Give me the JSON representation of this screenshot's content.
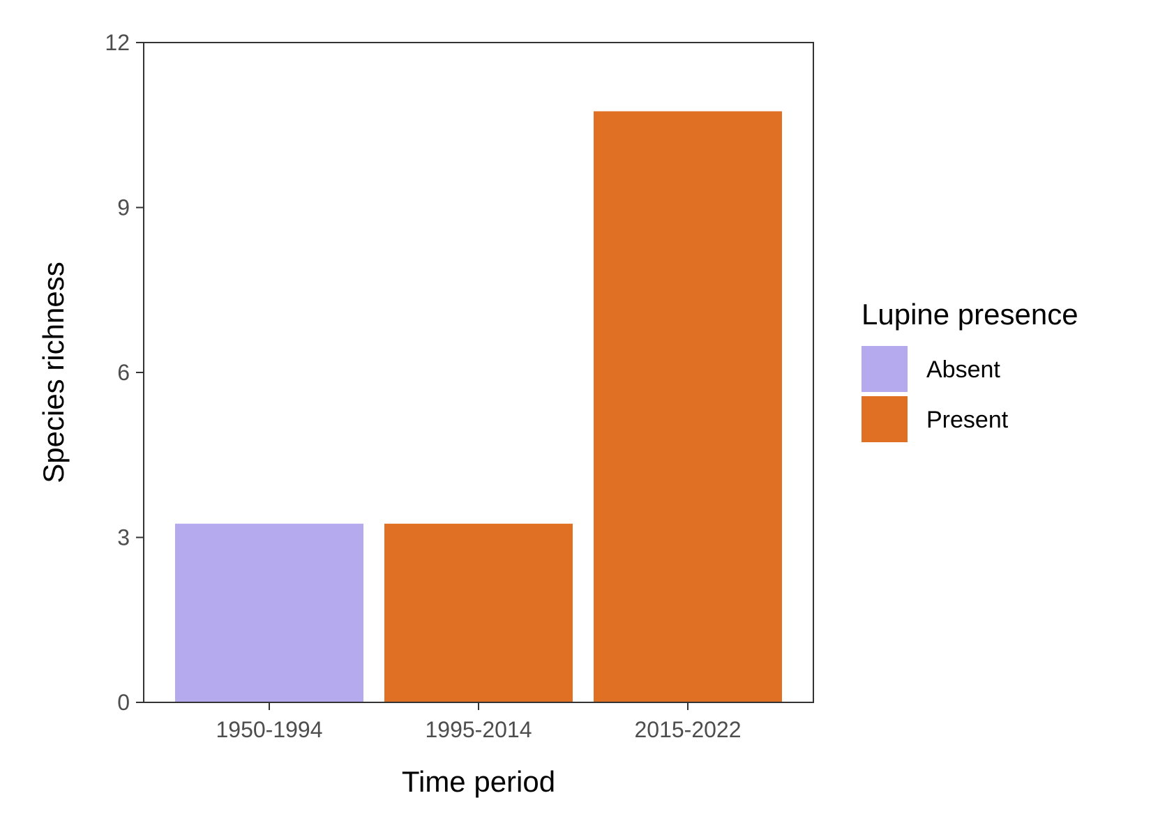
{
  "chart_data": {
    "type": "bar",
    "categories": [
      "1950-1994",
      "1995-2014",
      "2015-2022"
    ],
    "values": [
      3.25,
      3.25,
      10.75
    ],
    "groups": [
      "Absent",
      "Present",
      "Present"
    ],
    "xlabel": "Time period",
    "ylabel": "Species richness",
    "ylim": [
      0,
      12
    ],
    "yticks": [
      0,
      3,
      6,
      9,
      12
    ],
    "ytick_labels": [
      "0",
      "3",
      "6",
      "9",
      "12"
    ],
    "grid": false,
    "legend": {
      "title": "Lupine presence",
      "placement": "right",
      "entries": [
        {
          "label": "Absent",
          "color": "#b4aaed"
        },
        {
          "label": "Present",
          "color": "#e07023"
        }
      ]
    },
    "colors": {
      "Absent": "#b4aaed",
      "Present": "#e07023"
    }
  }
}
